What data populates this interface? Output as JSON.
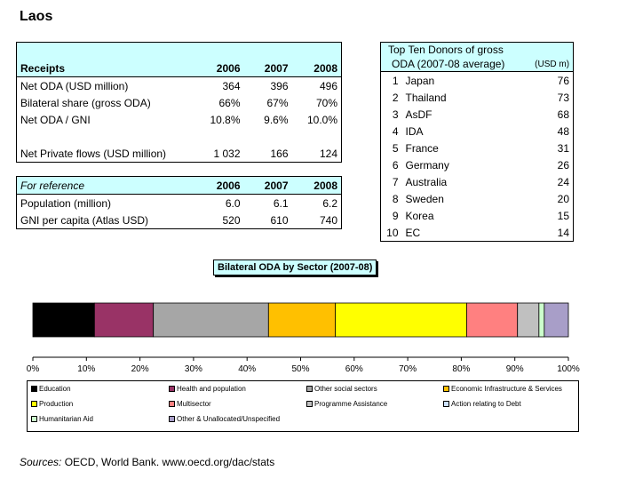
{
  "country": "Laos",
  "receipts": {
    "header": [
      "Receipts",
      "2006",
      "2007",
      "2008"
    ],
    "rows": [
      [
        "Net ODA (USD million)",
        "364",
        "396",
        "496"
      ],
      [
        "Bilateral share (gross ODA)",
        "66%",
        "67%",
        "70%"
      ],
      [
        "Net ODA / GNI",
        "10.8%",
        "9.6%",
        "10.0%"
      ],
      [
        "Net Private flows (USD million)",
        "1 032",
        "166",
        "124"
      ]
    ]
  },
  "reference": {
    "header": [
      "For reference",
      "2006",
      "2007",
      "2008"
    ],
    "rows": [
      [
        "Population (million)",
        "6.0",
        "6.1",
        "6.2"
      ],
      [
        "GNI per capita (Atlas USD)",
        "520",
        "610",
        "740"
      ]
    ]
  },
  "donors": {
    "title_line1": "Top Ten Donors of gross",
    "title_line2": "ODA (2007-08 average)",
    "unit": "(USD m)",
    "rows": [
      [
        "1",
        "Japan",
        "76"
      ],
      [
        "2",
        "Thailand",
        "73"
      ],
      [
        "3",
        "AsDF",
        "68"
      ],
      [
        "4",
        "IDA",
        "48"
      ],
      [
        "5",
        "France",
        "31"
      ],
      [
        "6",
        "Germany",
        "26"
      ],
      [
        "7",
        "Australia",
        "24"
      ],
      [
        "8",
        "Sweden",
        "20"
      ],
      [
        "9",
        "Korea",
        "15"
      ],
      [
        "10",
        "EC",
        "14"
      ]
    ]
  },
  "chart_data": {
    "type": "bar",
    "title": "Bilateral ODA by Sector (2007-08)",
    "orientation": "horizontal-stacked",
    "xlim": [
      0,
      100
    ],
    "x_ticks": [
      "0%",
      "10%",
      "20%",
      "30%",
      "40%",
      "50%",
      "60%",
      "70%",
      "80%",
      "90%",
      "100%"
    ],
    "series": [
      {
        "name": "Education",
        "value": 11.5,
        "color": "#000000"
      },
      {
        "name": "Health and population",
        "value": 11.0,
        "color": "#993366"
      },
      {
        "name": "Other social sectors",
        "value": 21.5,
        "color": "#a6a6a6"
      },
      {
        "name": "Economic Infrastructure & Services",
        "value": 12.5,
        "color": "#ffc000"
      },
      {
        "name": "Production",
        "value": 24.5,
        "color": "#ffff00"
      },
      {
        "name": "Multisector",
        "value": 9.5,
        "color": "#ff8080"
      },
      {
        "name": "Programme Assistance",
        "value": 4.0,
        "color": "#c0c0c0"
      },
      {
        "name": "Action relating to Debt",
        "value": 0.0,
        "color": "#cce0ff"
      },
      {
        "name": "Humanitarian Aid",
        "value": 1.0,
        "color": "#ccffcc"
      },
      {
        "name": "Other & Unallocated/Unspecified",
        "value": 4.5,
        "color": "#a89ec8"
      }
    ],
    "legend_placement": "bottom",
    "grid": false
  },
  "sources": {
    "label": "Sources:",
    "text": "OECD, World Bank. www.oecd.org/dac/stats"
  }
}
